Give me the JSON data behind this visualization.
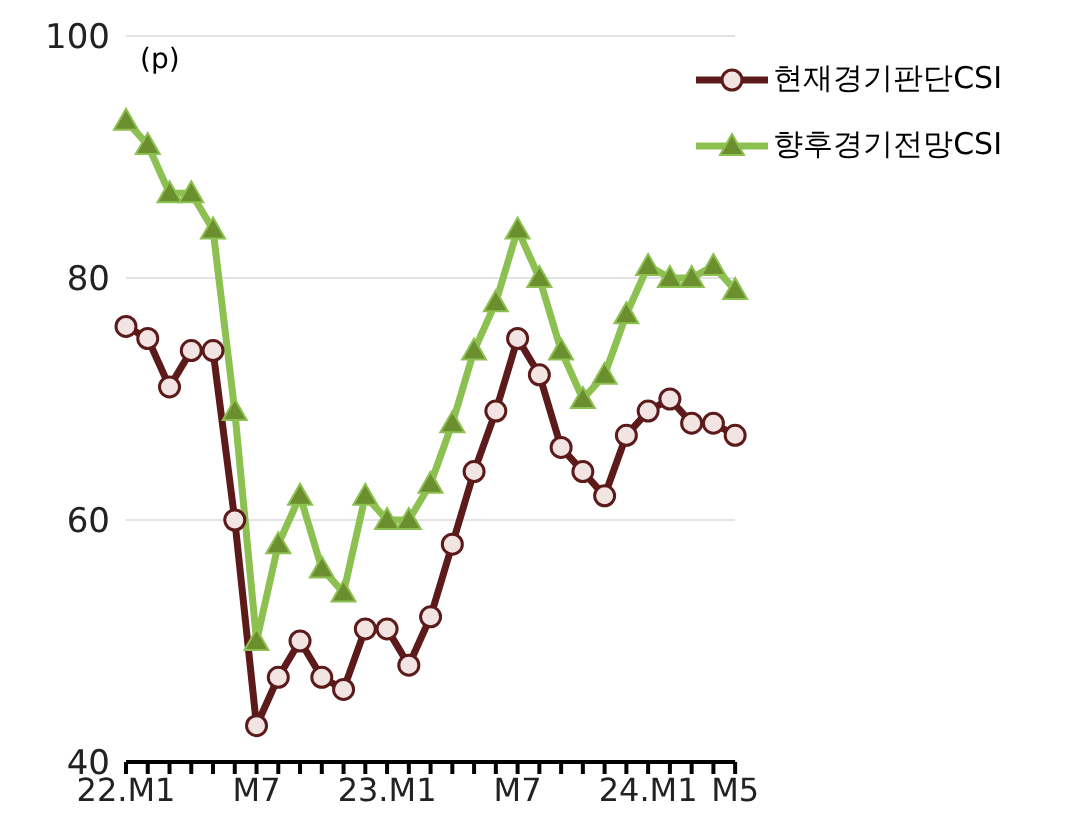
{
  "chart_data": {
    "type": "line",
    "ylabel": "(p)",
    "categories": [
      "22.M1",
      null,
      null,
      null,
      null,
      null,
      "M7",
      null,
      null,
      null,
      null,
      null,
      "23.M1",
      null,
      null,
      null,
      null,
      null,
      "M7",
      null,
      null,
      null,
      null,
      null,
      "24.M1",
      null,
      null,
      null,
      "M5"
    ],
    "series": [
      {
        "name": "현재경기판단CSI",
        "color": "#5c1a1a",
        "marker": "circle",
        "values": [
          76,
          75,
          71,
          74,
          74,
          60,
          43,
          47,
          50,
          47,
          46,
          51,
          51,
          48,
          52,
          58,
          64,
          69,
          75,
          72,
          66,
          64,
          62,
          67,
          69,
          70,
          68,
          68,
          67
        ]
      },
      {
        "name": "향후경기전망CSI",
        "color": "#8cc152",
        "marker": "triangle",
        "values": [
          93,
          91,
          87,
          87,
          84,
          69,
          50,
          58,
          62,
          56,
          54,
          62,
          60,
          60,
          63,
          68,
          74,
          78,
          84,
          80,
          74,
          70,
          72,
          77,
          81,
          80,
          80,
          81,
          79
        ]
      }
    ],
    "ylim": [
      40,
      100
    ],
    "yticks": [
      40,
      60,
      80,
      100
    ],
    "grid": "y",
    "legend": "top right"
  }
}
